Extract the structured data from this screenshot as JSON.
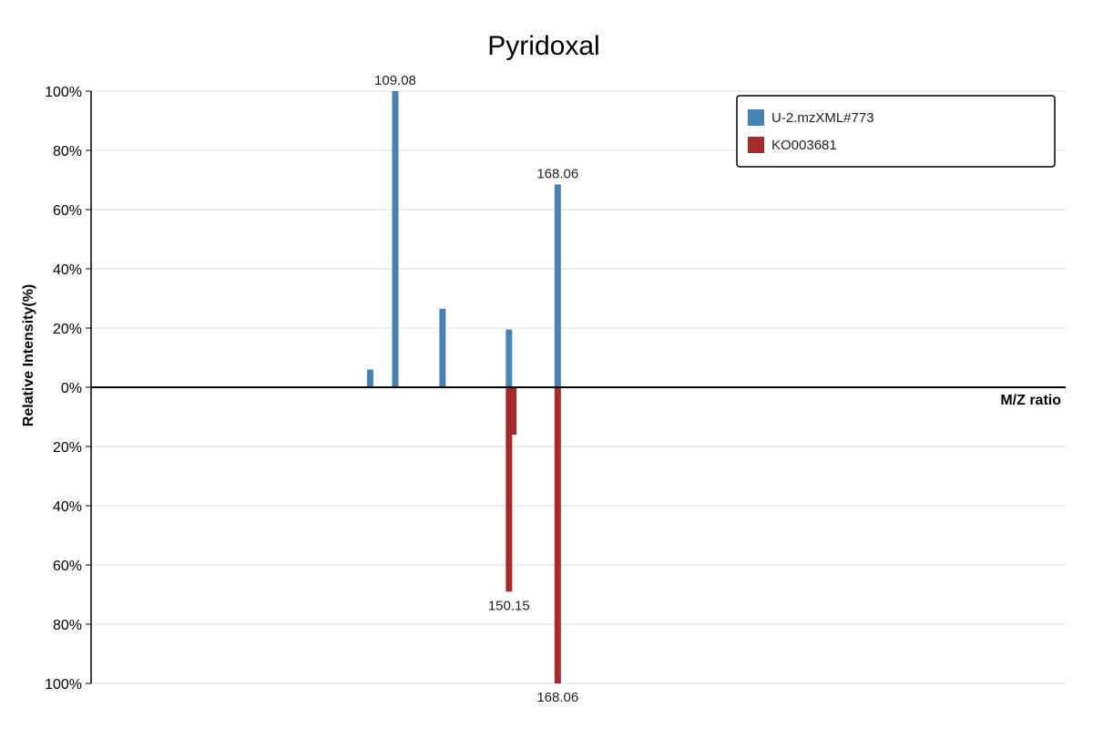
{
  "chart_data": {
    "type": "bar",
    "title": "Pyridoxal",
    "xlabel": "M/Z ratio",
    "ylabel": "Relative Intensity(%)",
    "yticks_top": [
      "100%",
      "80%",
      "60%",
      "40%",
      "20%",
      "0%"
    ],
    "yticks_bottom": [
      "20%",
      "40%",
      "60%",
      "80%",
      "100%"
    ],
    "ylim": [
      -100,
      100
    ],
    "xlim": [
      0,
      330
    ],
    "grid": true,
    "legend_position": "top-right",
    "series": [
      {
        "name": "U-2.mzXML#773",
        "color": "#4682b4",
        "direction": "up",
        "peaks": [
          {
            "x": 94.5,
            "y": 6
          },
          {
            "x": 103,
            "y": 100,
            "label": "109.08"
          },
          {
            "x": 119,
            "y": 26.5
          },
          {
            "x": 141.5,
            "y": 19.5
          },
          {
            "x": 158,
            "y": 68.5,
            "label": "168.06"
          }
        ]
      },
      {
        "name": "KO003681",
        "color": "#a52a2a",
        "direction": "down",
        "peaks": [
          {
            "x": 141.5,
            "y": 69,
            "label": "150.15"
          },
          {
            "x": 143,
            "y": 16
          },
          {
            "x": 158,
            "y": 100,
            "label": "168.06"
          }
        ]
      }
    ]
  }
}
